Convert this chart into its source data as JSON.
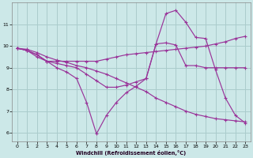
{
  "xlabel": "Windchill (Refroidissement éolien,°C)",
  "background_color": "#cce8e8",
  "grid_color": "#aacccc",
  "line_color": "#993399",
  "xlim": [
    -0.5,
    23.5
  ],
  "ylim": [
    5.6,
    12.0
  ],
  "yticks": [
    6,
    7,
    8,
    9,
    10,
    11
  ],
  "xticks": [
    0,
    1,
    2,
    3,
    4,
    5,
    6,
    7,
    8,
    9,
    10,
    11,
    12,
    13,
    14,
    15,
    16,
    17,
    18,
    19,
    20,
    21,
    22,
    23
  ],
  "line1_x": [
    0,
    1,
    2,
    3,
    4,
    5,
    6,
    7,
    8,
    9,
    10,
    11,
    12,
    13,
    14,
    15,
    16,
    17,
    18,
    19,
    20,
    21,
    22,
    23
  ],
  "line1_y": [
    9.9,
    9.8,
    9.6,
    9.3,
    9.3,
    9.3,
    9.3,
    9.3,
    9.3,
    9.4,
    9.5,
    9.6,
    9.65,
    9.7,
    9.75,
    9.8,
    9.85,
    9.9,
    9.95,
    10.0,
    10.1,
    10.2,
    10.35,
    10.45
  ],
  "line2_x": [
    0,
    1,
    2,
    3,
    4,
    5,
    6,
    7,
    8,
    9,
    10,
    11,
    12,
    13,
    14,
    15,
    16,
    17,
    18,
    19,
    20,
    21,
    22,
    23
  ],
  "line2_y": [
    9.9,
    9.8,
    9.6,
    9.3,
    9.2,
    9.1,
    9.0,
    8.7,
    8.4,
    8.1,
    8.1,
    8.2,
    8.35,
    8.5,
    10.1,
    10.15,
    10.05,
    9.1,
    9.1,
    9.0,
    9.0,
    9.0,
    9.0,
    9.0
  ],
  "line3_x": [
    0,
    1,
    2,
    3,
    4,
    5,
    6,
    7,
    8,
    9,
    10,
    11,
    12,
    13,
    14,
    15,
    16,
    17,
    18,
    19,
    20,
    21,
    22,
    23
  ],
  "line3_y": [
    9.9,
    9.8,
    9.5,
    9.3,
    9.0,
    8.8,
    8.5,
    7.4,
    5.95,
    6.8,
    7.4,
    7.85,
    8.15,
    8.5,
    10.1,
    11.5,
    11.65,
    11.1,
    10.4,
    10.35,
    8.9,
    7.6,
    6.8,
    6.45
  ],
  "line4_x": [
    0,
    1,
    2,
    3,
    4,
    5,
    6,
    7,
    8,
    9,
    10,
    11,
    12,
    13,
    14,
    15,
    16,
    17,
    18,
    19,
    20,
    21,
    22,
    23
  ],
  "line4_y": [
    9.9,
    9.85,
    9.7,
    9.5,
    9.35,
    9.25,
    9.1,
    9.0,
    8.85,
    8.7,
    8.5,
    8.3,
    8.1,
    7.9,
    7.6,
    7.4,
    7.2,
    7.0,
    6.85,
    6.75,
    6.65,
    6.6,
    6.55,
    6.5
  ]
}
